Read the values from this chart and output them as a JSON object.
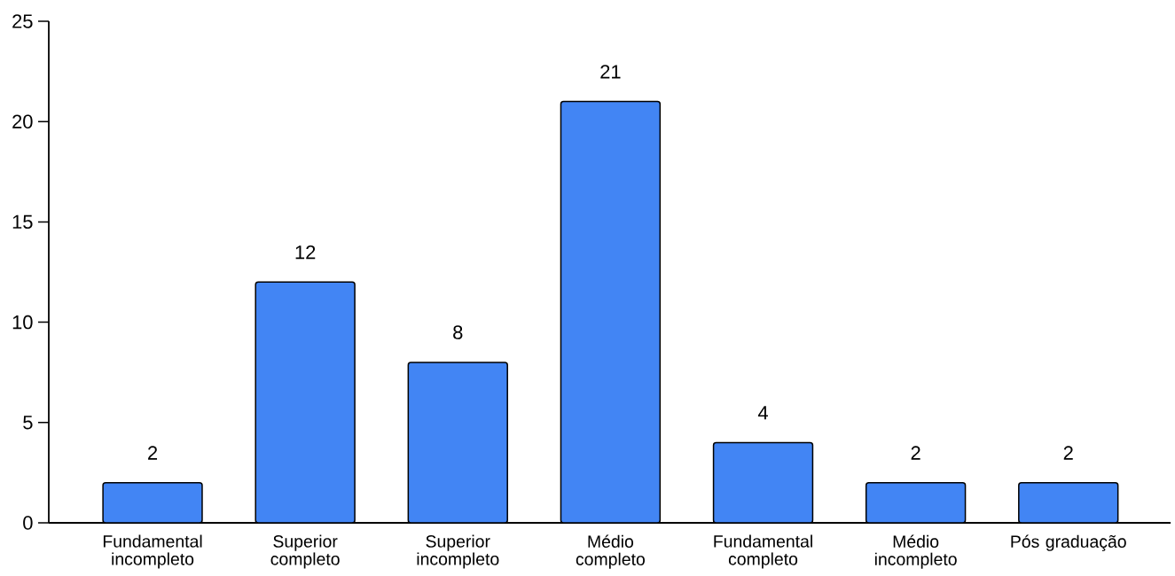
{
  "chart_data": {
    "type": "bar",
    "categories": [
      "Fundamental incompleto",
      "Superior completo",
      "Superior incompleto",
      "Médio completo",
      "Fundamental completo",
      "Médio incompleto",
      "Pós graduação"
    ],
    "values": [
      2,
      12,
      8,
      21,
      4,
      2,
      2
    ],
    "color": "#4285f4",
    "ylim": [
      0,
      25
    ],
    "yticks": [
      0,
      5,
      10,
      15,
      20,
      25
    ],
    "data_labels": true,
    "grid": false
  }
}
